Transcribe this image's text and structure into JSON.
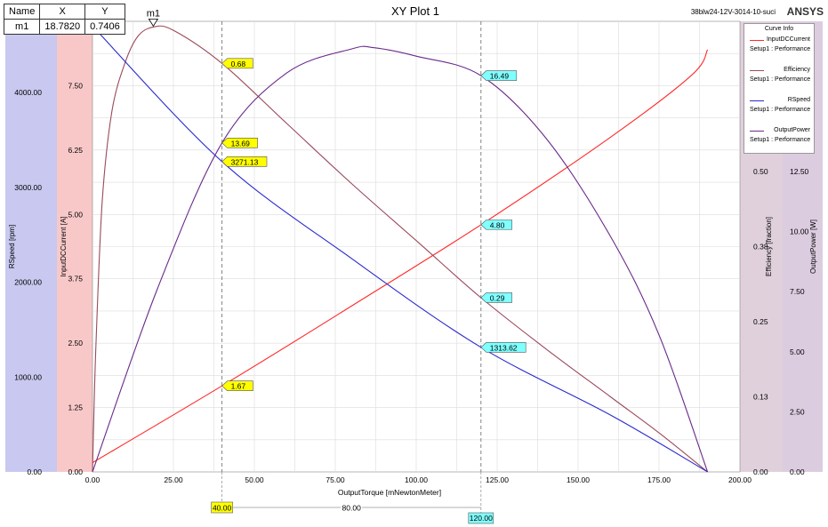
{
  "plot": {
    "title": "XY Plot 1",
    "subtitle": "38blw24-12V-3014-10-suci",
    "brand": "ANSYS"
  },
  "marker_table": {
    "headers": [
      "Name",
      "X",
      "Y"
    ],
    "rows": [
      [
        "m1",
        "18.7820",
        "0.7406"
      ]
    ]
  },
  "legend": {
    "title": "Curve Info",
    "entries": [
      {
        "name": "InputDCCurrent",
        "sub": "Setup1 : Performance",
        "color": "#ff2a2a"
      },
      {
        "name": "Efficiency",
        "sub": "Setup1 : Performance",
        "color": "#9a4a5a"
      },
      {
        "name": "RSpeed",
        "sub": "Setup1 : Performance",
        "color": "#2a2ad0"
      },
      {
        "name": "OutputPower",
        "sub": "Setup1 : Performance",
        "color": "#6a2a8a"
      }
    ]
  },
  "chart_data": {
    "type": "line",
    "xlabel": "OutputTorque [mNewtonMeter]",
    "xlim": [
      0,
      200
    ],
    "xticks": [
      "0.00",
      "25.00",
      "50.00",
      "75.00",
      "100.00",
      "125.00",
      "150.00",
      "175.00",
      "200.00"
    ],
    "axes": [
      {
        "id": "rspeed",
        "label": "RSpeed [rpm]",
        "ylim": [
          0,
          4750
        ],
        "ticks": [
          "0.00",
          "1000.00",
          "2000.00",
          "3000.00",
          "4000.00"
        ],
        "tickvals": [
          0,
          1000,
          2000,
          3000,
          4000
        ],
        "color": "#c8c8f0"
      },
      {
        "id": "current",
        "label": "InputDCCurrent [A]",
        "ylim": [
          0,
          8.75
        ],
        "ticks": [
          "0.00",
          "1.25",
          "2.50",
          "3.75",
          "5.00",
          "6.25",
          "7.50"
        ],
        "tickvals": [
          0,
          1.25,
          2.5,
          3.75,
          5.0,
          6.25,
          7.5
        ],
        "color": "#f8c8c8"
      },
      {
        "id": "efficiency",
        "label": "Efficiency [fraction]",
        "ylim": [
          0,
          0.75
        ],
        "ticks": [
          "0.00",
          "0.13",
          "0.25",
          "0.38",
          "0.50"
        ],
        "tickvals": [
          0,
          0.125,
          0.25,
          0.375,
          0.5
        ],
        "color": "#e0d0dc"
      },
      {
        "id": "power",
        "label": "OutputPower [W]",
        "ylim": [
          0,
          18.75
        ],
        "ticks": [
          "0.00",
          "2.50",
          "5.00",
          "7.50",
          "10.00",
          "12.50"
        ],
        "tickvals": [
          0,
          2.5,
          5.0,
          7.5,
          10.0,
          12.5
        ],
        "color": "#dccce0"
      }
    ],
    "series": [
      {
        "name": "InputDCCurrent",
        "axis": "current",
        "color": "#ff2a2a",
        "x": [
          0,
          40,
          80,
          120,
          160,
          185,
          190
        ],
        "y": [
          0.18,
          1.67,
          3.22,
          4.8,
          6.5,
          7.7,
          8.2
        ]
      },
      {
        "name": "Efficiency",
        "axis": "efficiency",
        "color": "#9a4a5a",
        "x": [
          0,
          1,
          3,
          6,
          10,
          14,
          18.782,
          25,
          40,
          60,
          80,
          100,
          120,
          140,
          160,
          175,
          190
        ],
        "y": [
          0.0,
          0.2,
          0.45,
          0.6,
          0.68,
          0.725,
          0.7406,
          0.735,
          0.68,
          0.58,
          0.48,
          0.385,
          0.29,
          0.205,
          0.125,
          0.065,
          0.0
        ]
      },
      {
        "name": "RSpeed",
        "axis": "rspeed",
        "color": "#2a2ad0",
        "x": [
          0,
          40,
          80,
          120,
          160,
          190
        ],
        "y": [
          4700,
          3271.13,
          2250,
          1313.62,
          600,
          0
        ]
      },
      {
        "name": "OutputPower",
        "axis": "power",
        "color": "#6a2a8a",
        "x": [
          0,
          20,
          40,
          60,
          80,
          87,
          100,
          120,
          140,
          160,
          175,
          190
        ],
        "y": [
          0,
          7.6,
          13.69,
          16.6,
          17.6,
          17.65,
          17.3,
          16.49,
          13.9,
          9.8,
          5.7,
          0
        ]
      }
    ],
    "vlines": [
      40,
      120
    ],
    "markers": [
      {
        "name": "m1",
        "x": 18.782,
        "y": 0.7406,
        "axis": "efficiency"
      }
    ],
    "data_labels": [
      {
        "text": "0.68",
        "x": 40,
        "y": 0.68,
        "axis": "efficiency",
        "bg": "#ffff00"
      },
      {
        "text": "13.69",
        "x": 40,
        "y": 13.69,
        "axis": "power",
        "bg": "#ffff00"
      },
      {
        "text": "3271.13",
        "x": 40,
        "y": 3271.13,
        "axis": "rspeed",
        "bg": "#ffff00"
      },
      {
        "text": "1.67",
        "x": 40,
        "y": 1.67,
        "axis": "current",
        "bg": "#ffff00"
      },
      {
        "text": "16.49",
        "x": 120,
        "y": 16.49,
        "axis": "power",
        "bg": "#80ffff"
      },
      {
        "text": "4.80",
        "x": 120,
        "y": 4.8,
        "axis": "current",
        "bg": "#80ffff"
      },
      {
        "text": "0.29",
        "x": 120,
        "y": 0.29,
        "axis": "efficiency",
        "bg": "#80ffff"
      },
      {
        "text": "1313.62",
        "x": 120,
        "y": 1313.62,
        "axis": "rspeed",
        "bg": "#80ffff"
      }
    ],
    "delta": {
      "left_label": "40.00",
      "right_label": "120.00",
      "mid_label": "80.00"
    },
    "grid": true
  }
}
